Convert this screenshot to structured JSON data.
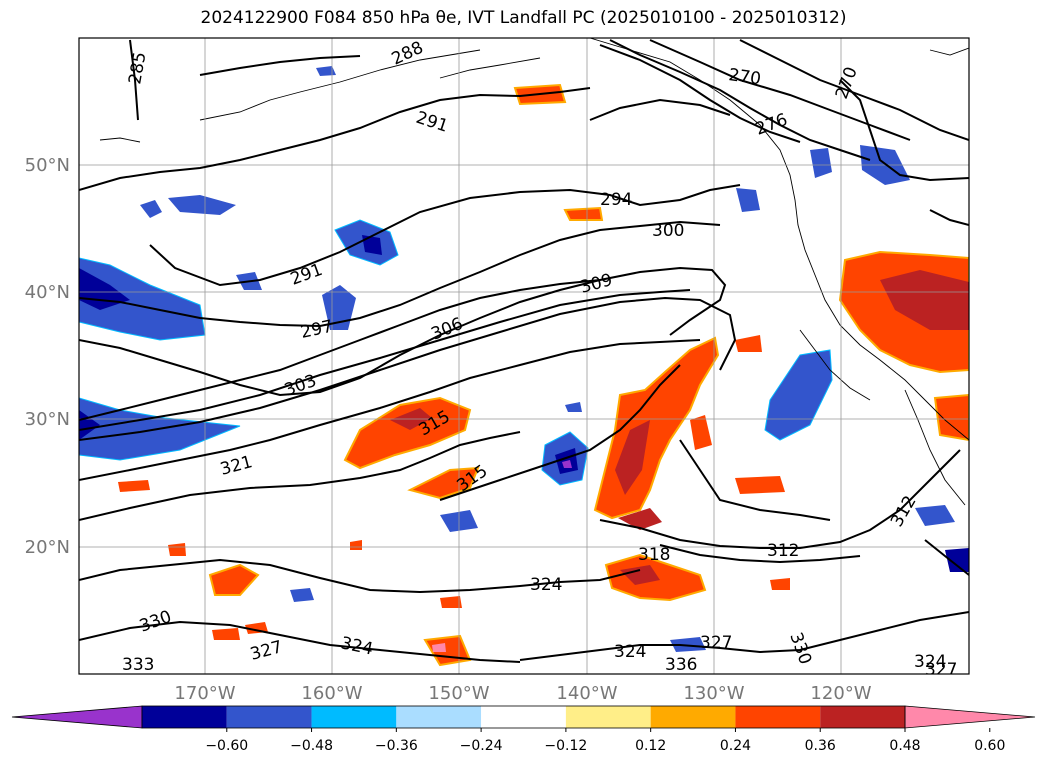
{
  "title": "2024122900 F084 850 hPa θe, IVT Landfall PC (2025010100 - 2025010312)",
  "lat_labels": [
    "50°N",
    "40°N",
    "30°N",
    "20°N"
  ],
  "lon_labels": [
    "170°W",
    "160°W",
    "150°W",
    "140°W",
    "130°W",
    "120°W"
  ],
  "colorbar": {
    "colors": [
      "#9933cc",
      "#000099",
      "#3355cc",
      "#00bbff",
      "#aaddff",
      "#ffffff",
      "#ffee88",
      "#ffaa00",
      "#ff4400",
      "#bb2222",
      "#ff88aa"
    ],
    "ticks": [
      "−0.60",
      "−0.48",
      "−0.36",
      "−0.24",
      "−0.12",
      "0.12",
      "0.24",
      "0.36",
      "0.48",
      "0.60"
    ]
  },
  "contour_labels": [
    "285",
    "288",
    "291",
    "291",
    "294",
    "297",
    "300",
    "303",
    "306",
    "309",
    "312",
    "312",
    "315",
    "315",
    "318",
    "321",
    "324",
    "324",
    "324",
    "324",
    "327",
    "327",
    "327",
    "330",
    "330",
    "333",
    "336",
    "270",
    "270",
    "276"
  ]
}
